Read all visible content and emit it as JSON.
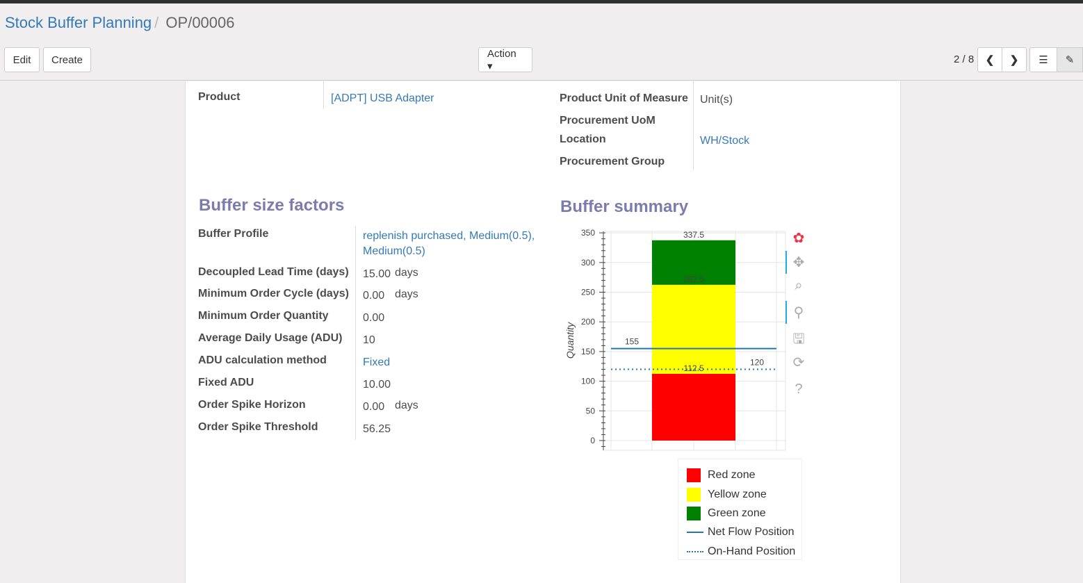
{
  "breadcrumb": {
    "parent": "Stock Buffer Planning",
    "separator": "/",
    "current": "OP/00006"
  },
  "toolbar": {
    "edit": "Edit",
    "create": "Create",
    "action": "Action ▾",
    "pager": "2 / 8",
    "prev_icon": "chevron-left-icon",
    "next_icon": "chevron-right-icon",
    "list_icon": "list-icon",
    "form_icon": "edit-icon"
  },
  "top_fields": {
    "product_label": "Product",
    "product_value": "[ADPT] USB Adapter",
    "uom_label": "Product Unit of Measure",
    "uom_value": "Unit(s)",
    "proc_uom_label": "Procurement UoM",
    "location_label": "Location",
    "location_value": "WH/Stock",
    "group_label": "Procurement Group"
  },
  "factors": {
    "title": "Buffer size factors",
    "rows": [
      {
        "label": "Buffer Profile",
        "value": "replenish purchased, Medium(0.5),",
        "value2": "Medium(0.5)",
        "link": true
      },
      {
        "label": "Decoupled Lead Time (days)",
        "value": "15.00",
        "unit": "days"
      },
      {
        "label": "Minimum Order Cycle (days)",
        "value": "0.00",
        "unit": "days"
      },
      {
        "label": "Minimum Order Quantity",
        "value": "0.00"
      },
      {
        "label": "Average Daily Usage (ADU)",
        "value": "10"
      },
      {
        "label": "ADU calculation method",
        "value": "Fixed",
        "link": true
      },
      {
        "label": "Fixed ADU",
        "value": "10.00"
      },
      {
        "label": "Order Spike Horizon",
        "value": "0.00",
        "unit": "days"
      },
      {
        "label": "Order Spike Threshold",
        "value": "56.25"
      }
    ]
  },
  "summary": {
    "title": "Buffer summary"
  },
  "chart_data": {
    "type": "bar",
    "ylabel": "Quantity",
    "ylim": [
      -10,
      350
    ],
    "yticks": [
      0,
      50,
      100,
      150,
      200,
      250,
      300,
      350
    ],
    "grid": true,
    "stacked": [
      {
        "name": "Red zone",
        "from": 0,
        "to": 112.5,
        "color": "#ff0000"
      },
      {
        "name": "Yellow zone",
        "from": 112.5,
        "to": 262.5,
        "color": "#ffff00"
      },
      {
        "name": "Green zone",
        "from": 262.5,
        "to": 337.5,
        "color": "#008000"
      }
    ],
    "bar_labels": [
      "112.5",
      "262.5",
      "337.5"
    ],
    "lines": [
      {
        "name": "Net Flow Position",
        "value": 155,
        "label": "155",
        "style": "solid",
        "color": "#1f77b4"
      },
      {
        "name": "On-Hand Position",
        "value": 120,
        "label": "120",
        "style": "dotted",
        "color": "#1f77b4"
      }
    ],
    "legend": [
      "Red zone",
      "Yellow zone",
      "Green zone",
      "Net Flow Position",
      "On-Hand Position"
    ],
    "legend_position": "bottom"
  },
  "chart_tools": [
    "bokeh-logo-icon",
    "pan-icon",
    "box-zoom-icon",
    "wheel-zoom-icon",
    "save-icon",
    "reset-icon",
    "help-icon"
  ]
}
